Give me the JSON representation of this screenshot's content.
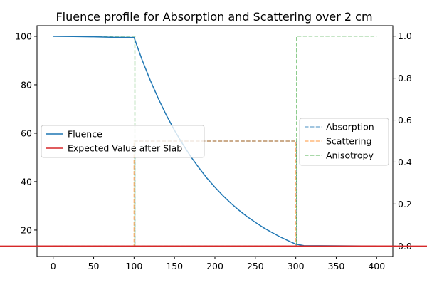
{
  "chart_data": {
    "type": "line",
    "title": "Fluence profile for Absorption and Scattering over 2 cm",
    "xlabel": "",
    "ylabel_left": "",
    "ylabel_right": "",
    "xlim": [
      -20,
      420
    ],
    "ylim_left": [
      9.1,
      104.4
    ],
    "ylim_right": [
      -0.05,
      1.05
    ],
    "x_ticks": [
      0,
      50,
      100,
      150,
      200,
      250,
      300,
      350,
      400
    ],
    "y_ticks_left": [
      20,
      40,
      60,
      80,
      100
    ],
    "y_ticks_right": [
      0.0,
      0.2,
      0.4,
      0.6,
      0.8,
      1.0
    ],
    "grid": false,
    "axis_lines": [
      {
        "name": "Expected Value after Slab",
        "value": 13.4,
        "color": "#d62728"
      }
    ],
    "series_left": [
      {
        "name": "Fluence",
        "color": "#1f77b4",
        "style": "solid",
        "x": [
          0,
          25,
          50,
          75,
          100,
          110,
          120,
          130,
          140,
          150,
          160,
          170,
          180,
          190,
          200,
          210,
          220,
          230,
          240,
          250,
          260,
          270,
          280,
          290,
          300,
          310,
          350,
          400
        ],
        "y": [
          100,
          99.9,
          99.8,
          99.6,
          99.5,
          90.2,
          81.9,
          74.3,
          67.4,
          61.2,
          55.6,
          50.4,
          45.8,
          41.5,
          37.7,
          34.2,
          31.0,
          28.1,
          25.5,
          23.2,
          21.0,
          19.1,
          17.3,
          15.7,
          14.2,
          13.6,
          13.5,
          13.4
        ]
      },
      {
        "name": "Expected Value after Slab",
        "color": "#d62728",
        "style": "solid",
        "constant": 13.4
      }
    ],
    "series_right": [
      {
        "name": "Absorption",
        "color": "#1f77b4",
        "style": "dashed",
        "x": [
          0,
          99,
          99,
          101,
          101,
          299,
          299,
          301,
          301,
          400
        ],
        "y": [
          0,
          0,
          0,
          0,
          0.5,
          0.5,
          0.5,
          0.5,
          0,
          0
        ]
      },
      {
        "name": "Scattering",
        "color": "#ff7f0e",
        "style": "dashed",
        "x": [
          0,
          100,
          100,
          300,
          300,
          400
        ],
        "y": [
          0,
          0,
          0.5,
          0.5,
          0,
          0
        ]
      },
      {
        "name": "Anisotropy",
        "color": "#2ca02c",
        "style": "dashed",
        "x": [
          0,
          99,
          99,
          101,
          101,
          299,
          299,
          301,
          301,
          400
        ],
        "y": [
          1,
          1,
          1,
          1,
          0,
          0,
          0,
          0,
          1,
          1
        ]
      }
    ],
    "legend_left": {
      "placement": "center-left",
      "entries": [
        {
          "label": "Fluence",
          "color": "#1f77b4",
          "style": "solid"
        },
        {
          "label": "Expected Value after Slab",
          "color": "#d62728",
          "style": "solid"
        }
      ]
    },
    "legend_right": {
      "placement": "center-right",
      "entries": [
        {
          "label": "Absorption",
          "color": "#1f77b4",
          "style": "dashed"
        },
        {
          "label": "Scattering",
          "color": "#ff7f0e",
          "style": "dashed"
        },
        {
          "label": "Anisotropy",
          "color": "#2ca02c",
          "style": "dashed"
        }
      ]
    }
  }
}
